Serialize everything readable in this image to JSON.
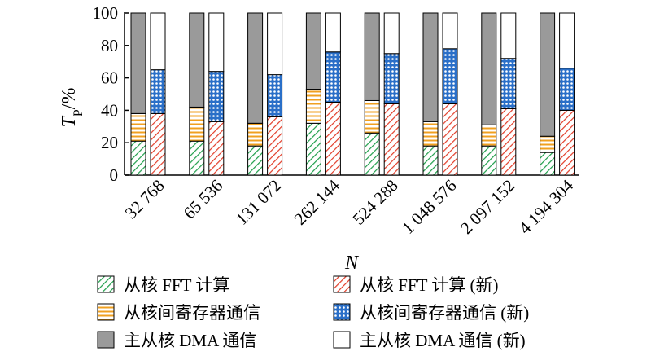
{
  "chart_data": {
    "type": "bar",
    "subtype": "stacked-grouped",
    "xlabel": "N",
    "ylabel_main": "T",
    "ylabel_sub": "P",
    "ylabel_suffix": "/%",
    "ylim": [
      0,
      100
    ],
    "yticks": [
      0,
      20,
      40,
      60,
      80,
      100
    ],
    "categories": [
      "32 768",
      "65 536",
      "131 072",
      "262 144",
      "524 288",
      "1 048 576",
      "2 097 152",
      "4 194 304"
    ],
    "groups": [
      {
        "key": "old",
        "segments": [
          {
            "name": "从核 FFT 计算",
            "pattern": "hatch-green",
            "values": [
              21,
              21,
              18,
              32,
              26,
              18,
              18,
              14
            ]
          },
          {
            "name": "从核间寄存器通信",
            "pattern": "hatch-orange",
            "values": [
              17,
              21,
              14,
              21,
              20,
              15,
              13,
              10
            ]
          },
          {
            "name": "主从核 DMA 通信",
            "pattern": "solid-gray",
            "values": [
              62,
              58,
              68,
              47,
              54,
              67,
              69,
              76
            ]
          }
        ]
      },
      {
        "key": "new",
        "segments": [
          {
            "name": "从核 FFT 计算 (新)",
            "pattern": "hatch-red",
            "values": [
              38,
              33,
              36,
              45,
              44,
              44,
              41,
              40
            ]
          },
          {
            "name": "从核间寄存器通信 (新)",
            "pattern": "dots-blue",
            "values": [
              27,
              31,
              26,
              31,
              31,
              34,
              31,
              26
            ]
          },
          {
            "name": "主从核 DMA 通信 (新)",
            "pattern": "solid-white",
            "values": [
              35,
              36,
              38,
              24,
              25,
              22,
              28,
              34
            ]
          }
        ]
      }
    ],
    "legend": [
      {
        "label": "从核 FFT 计算",
        "pattern": "hatch-green"
      },
      {
        "label": "从核 FFT 计算 (新)",
        "pattern": "hatch-red"
      },
      {
        "label": "从核间寄存器通信",
        "pattern": "hatch-orange"
      },
      {
        "label": "从核间寄存器通信 (新)",
        "pattern": "dots-blue"
      },
      {
        "label": "主从核 DMA 通信",
        "pattern": "solid-gray"
      },
      {
        "label": "主从核 DMA 通信 (新)",
        "pattern": "solid-white"
      }
    ],
    "legend_placement": "bottom",
    "grid": false,
    "colors": {
      "green": "#1e9e4a",
      "orange": "#f0a020",
      "red": "#e23c28",
      "blue": "#2a6fc8",
      "gray": "#9a9a9a",
      "white": "#ffffff",
      "outline": "#000000"
    }
  }
}
